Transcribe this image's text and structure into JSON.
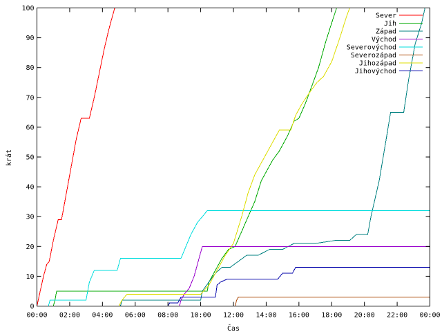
{
  "chart_data": {
    "type": "line",
    "title": "",
    "xlabel": "Čas",
    "ylabel": "krát",
    "xlim": [
      0,
      24
    ],
    "ylim": [
      0,
      100
    ],
    "grid": false,
    "legend_position": "top-right",
    "x_tick_labels": [
      "00:00",
      "02:00",
      "04:00",
      "06:00",
      "08:00",
      "10:00",
      "12:00",
      "14:00",
      "16:00",
      "18:00",
      "20:00",
      "22:00",
      "00:00"
    ],
    "x_tick_values": [
      0,
      2,
      4,
      6,
      8,
      10,
      12,
      14,
      16,
      18,
      20,
      22,
      24
    ],
    "y_tick_values": [
      0,
      10,
      20,
      30,
      40,
      50,
      60,
      70,
      80,
      90,
      100
    ],
    "series": [
      {
        "name": "Sever",
        "color": "#ff0000",
        "points": [
          [
            0.0,
            0
          ],
          [
            0.2,
            5
          ],
          [
            0.4,
            10
          ],
          [
            0.6,
            14
          ],
          [
            0.75,
            15
          ],
          [
            1.0,
            22
          ],
          [
            1.3,
            29
          ],
          [
            1.5,
            29
          ],
          [
            1.8,
            38
          ],
          [
            2.1,
            47
          ],
          [
            2.4,
            56
          ],
          [
            2.7,
            63
          ],
          [
            3.2,
            63
          ],
          [
            3.5,
            70
          ],
          [
            3.8,
            78
          ],
          [
            4.1,
            86
          ],
          [
            4.4,
            93
          ],
          [
            4.75,
            100
          ]
        ]
      },
      {
        "name": "Jih",
        "color": "#00aa00",
        "points": [
          [
            0.0,
            0
          ],
          [
            1.0,
            0
          ],
          [
            1.1,
            2
          ],
          [
            1.2,
            5
          ],
          [
            10.4,
            5
          ],
          [
            10.5,
            8
          ],
          [
            10.9,
            12
          ],
          [
            11.3,
            16
          ],
          [
            11.7,
            19
          ],
          [
            12.1,
            20
          ],
          [
            12.5,
            25
          ],
          [
            12.9,
            30
          ],
          [
            13.3,
            35
          ],
          [
            13.7,
            42
          ],
          [
            14.0,
            45
          ],
          [
            14.4,
            49
          ],
          [
            14.8,
            52
          ],
          [
            15.3,
            57
          ],
          [
            15.7,
            62
          ],
          [
            16.0,
            63
          ],
          [
            16.4,
            68
          ],
          [
            16.8,
            74
          ],
          [
            17.2,
            80
          ],
          [
            17.6,
            88
          ],
          [
            18.0,
            95
          ],
          [
            18.3,
            100
          ]
        ]
      },
      {
        "name": "Západ",
        "color": "#008080",
        "points": [
          [
            0.0,
            0
          ],
          [
            5.1,
            0
          ],
          [
            5.2,
            2
          ],
          [
            10.0,
            2
          ],
          [
            10.1,
            5
          ],
          [
            10.5,
            8
          ],
          [
            10.9,
            11
          ],
          [
            11.3,
            13
          ],
          [
            11.8,
            13
          ],
          [
            12.3,
            15
          ],
          [
            12.8,
            17
          ],
          [
            13.5,
            17
          ],
          [
            14.2,
            19
          ],
          [
            15.0,
            19
          ],
          [
            15.7,
            21
          ],
          [
            17.0,
            21
          ],
          [
            18.2,
            22
          ],
          [
            19.1,
            22
          ],
          [
            19.5,
            24
          ],
          [
            20.2,
            24
          ],
          [
            20.4,
            30
          ],
          [
            20.9,
            42
          ],
          [
            21.3,
            55
          ],
          [
            21.6,
            65
          ],
          [
            22.4,
            65
          ],
          [
            22.7,
            76
          ],
          [
            23.1,
            88
          ],
          [
            23.5,
            95
          ],
          [
            23.7,
            100
          ]
        ]
      },
      {
        "name": "Východ",
        "color": "#9900cc",
        "points": [
          [
            0.0,
            0
          ],
          [
            8.7,
            0
          ],
          [
            8.8,
            2
          ],
          [
            9.0,
            4
          ],
          [
            9.3,
            6
          ],
          [
            9.6,
            10
          ],
          [
            9.85,
            15
          ],
          [
            10.1,
            20
          ],
          [
            24.0,
            20
          ]
        ]
      },
      {
        "name": "Severovýchod",
        "color": "#00dddd",
        "points": [
          [
            0.0,
            0
          ],
          [
            0.7,
            0
          ],
          [
            0.8,
            2
          ],
          [
            3.0,
            2
          ],
          [
            3.2,
            8
          ],
          [
            3.5,
            12
          ],
          [
            4.9,
            12
          ],
          [
            5.1,
            16
          ],
          [
            8.8,
            16
          ],
          [
            9.1,
            20
          ],
          [
            9.4,
            24
          ],
          [
            9.8,
            28
          ],
          [
            10.1,
            30
          ],
          [
            10.4,
            32
          ],
          [
            24.0,
            32
          ]
        ]
      },
      {
        "name": "Severozápad",
        "color": "#aa4400",
        "points": [
          [
            0.0,
            0
          ],
          [
            12.1,
            0
          ],
          [
            12.2,
            2
          ],
          [
            12.3,
            3
          ],
          [
            24.0,
            3
          ]
        ]
      },
      {
        "name": "Jihozápad",
        "color": "#dddd00",
        "points": [
          [
            0.0,
            0
          ],
          [
            5.0,
            0
          ],
          [
            5.2,
            2
          ],
          [
            5.5,
            4
          ],
          [
            10.0,
            4
          ],
          [
            10.5,
            7
          ],
          [
            11.0,
            12
          ],
          [
            11.5,
            17
          ],
          [
            12.0,
            21
          ],
          [
            12.5,
            30
          ],
          [
            12.9,
            38
          ],
          [
            13.3,
            44
          ],
          [
            13.7,
            48
          ],
          [
            14.0,
            51
          ],
          [
            14.4,
            55
          ],
          [
            14.8,
            59
          ],
          [
            15.5,
            59
          ],
          [
            15.8,
            64
          ],
          [
            16.2,
            68
          ],
          [
            16.7,
            72
          ],
          [
            17.1,
            75
          ],
          [
            17.5,
            77
          ],
          [
            18.0,
            82
          ],
          [
            18.5,
            90
          ],
          [
            18.9,
            97
          ],
          [
            19.1,
            100
          ]
        ]
      },
      {
        "name": "Jihovýchod",
        "color": "#0000aa",
        "points": [
          [
            0.0,
            0
          ],
          [
            8.0,
            0
          ],
          [
            8.1,
            1
          ],
          [
            8.6,
            1
          ],
          [
            8.8,
            3
          ],
          [
            10.9,
            3
          ],
          [
            11.0,
            7
          ],
          [
            11.2,
            8
          ],
          [
            11.6,
            9
          ],
          [
            14.7,
            9
          ],
          [
            15.0,
            11
          ],
          [
            15.6,
            11
          ],
          [
            15.8,
            13
          ],
          [
            24.0,
            13
          ]
        ]
      }
    ]
  }
}
